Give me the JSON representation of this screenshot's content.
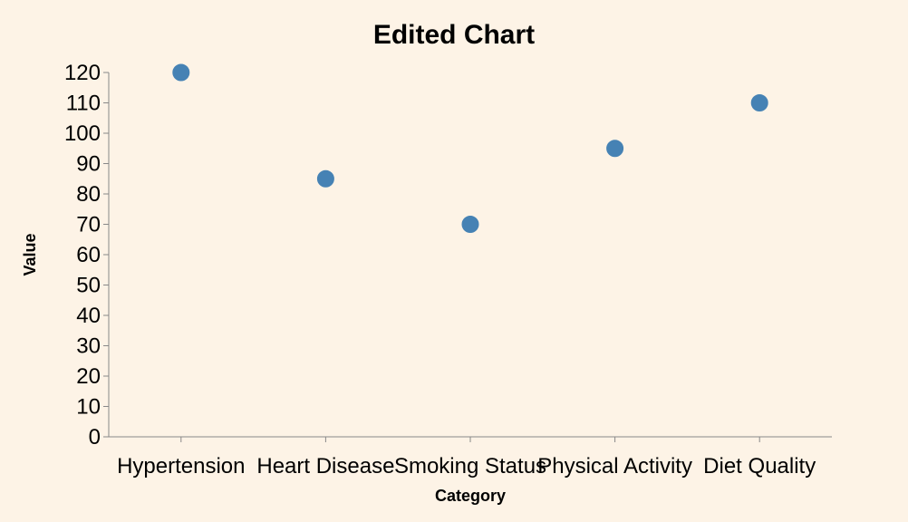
{
  "chart_data": {
    "type": "scatter",
    "title": "Edited Chart",
    "xlabel": "Category",
    "ylabel": "Value",
    "categories": [
      "Hypertension",
      "Heart Disease",
      "Smoking Status",
      "Physical Activity",
      "Diet Quality"
    ],
    "values": [
      120,
      85,
      70,
      95,
      110
    ],
    "ylim": [
      0,
      120
    ],
    "yticks": [
      0,
      10,
      20,
      30,
      40,
      50,
      60,
      70,
      80,
      90,
      100,
      110,
      120
    ],
    "grid": false,
    "legend": "none",
    "colors": {
      "point": "#4682b4",
      "background": "#fdf3e6",
      "axis": "#888888"
    }
  }
}
